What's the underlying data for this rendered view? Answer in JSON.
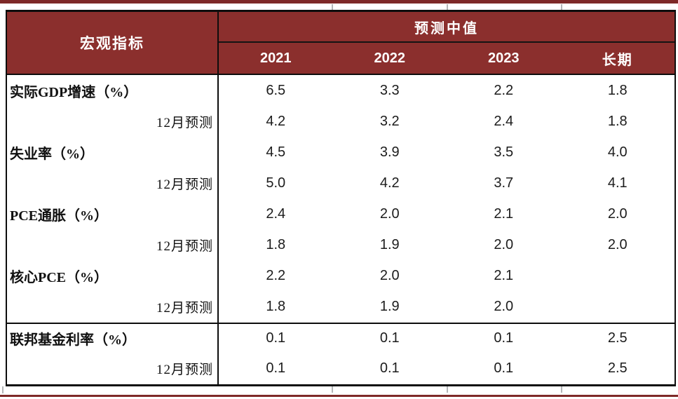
{
  "page": {
    "accent_maroon": "#8b2f2d",
    "rule_maroon": "#7e2928",
    "border_black": "#0d0d0d"
  },
  "table": {
    "corner_header": "宏观指标",
    "group_header": "预测中值",
    "year_headers": [
      "2021",
      "2022",
      "2023",
      "长期"
    ],
    "rows": [
      {
        "label": "实际GDP增速（%）",
        "indent": false,
        "divider_above": false,
        "values": [
          "6.5",
          "3.3",
          "2.2",
          "1.8"
        ]
      },
      {
        "label": "12月预测",
        "indent": true,
        "divider_above": false,
        "values": [
          "4.2",
          "3.2",
          "2.4",
          "1.8"
        ]
      },
      {
        "label": "失业率（%）",
        "indent": false,
        "divider_above": false,
        "values": [
          "4.5",
          "3.9",
          "3.5",
          "4.0"
        ]
      },
      {
        "label": "12月预测",
        "indent": true,
        "divider_above": false,
        "values": [
          "5.0",
          "4.2",
          "3.7",
          "4.1"
        ]
      },
      {
        "label": "PCE通胀（%）",
        "indent": false,
        "divider_above": false,
        "values": [
          "2.4",
          "2.0",
          "2.1",
          "2.0"
        ]
      },
      {
        "label": "12月预测",
        "indent": true,
        "divider_above": false,
        "values": [
          "1.8",
          "1.9",
          "2.0",
          "2.0"
        ]
      },
      {
        "label": "核心PCE（%）",
        "indent": false,
        "divider_above": false,
        "values": [
          "2.2",
          "2.0",
          "2.1",
          ""
        ]
      },
      {
        "label": "12月预测",
        "indent": true,
        "divider_above": false,
        "values": [
          "1.8",
          "1.9",
          "2.0",
          ""
        ]
      },
      {
        "label": "联邦基金利率（%）",
        "indent": false,
        "divider_above": true,
        "values": [
          "0.1",
          "0.1",
          "0.1",
          "2.5"
        ]
      },
      {
        "label": "12月预测",
        "indent": true,
        "divider_above": false,
        "values": [
          "0.1",
          "0.1",
          "0.1",
          "2.5"
        ]
      }
    ]
  },
  "chart_data": {
    "type": "table",
    "title": "预测中值",
    "row_header": "宏观指标",
    "columns": [
      "2021",
      "2022",
      "2023",
      "长期"
    ],
    "rows": [
      {
        "indicator": "实际GDP增速（%）",
        "values": [
          6.5,
          3.3,
          2.2,
          1.8
        ]
      },
      {
        "indicator": "实际GDP增速（%）12月预测",
        "values": [
          4.2,
          3.2,
          2.4,
          1.8
        ]
      },
      {
        "indicator": "失业率（%）",
        "values": [
          4.5,
          3.9,
          3.5,
          4.0
        ]
      },
      {
        "indicator": "失业率（%）12月预测",
        "values": [
          5.0,
          4.2,
          3.7,
          4.1
        ]
      },
      {
        "indicator": "PCE通胀（%）",
        "values": [
          2.4,
          2.0,
          2.1,
          2.0
        ]
      },
      {
        "indicator": "PCE通胀（%）12月预测",
        "values": [
          1.8,
          1.9,
          2.0,
          2.0
        ]
      },
      {
        "indicator": "核心PCE（%）",
        "values": [
          2.2,
          2.0,
          2.1,
          null
        ]
      },
      {
        "indicator": "核心PCE（%）12月预测",
        "values": [
          1.8,
          1.9,
          2.0,
          null
        ]
      },
      {
        "indicator": "联邦基金利率（%）",
        "values": [
          0.1,
          0.1,
          0.1,
          2.5
        ]
      },
      {
        "indicator": "联邦基金利率（%）12月预测",
        "values": [
          0.1,
          0.1,
          0.1,
          2.5
        ]
      }
    ]
  }
}
